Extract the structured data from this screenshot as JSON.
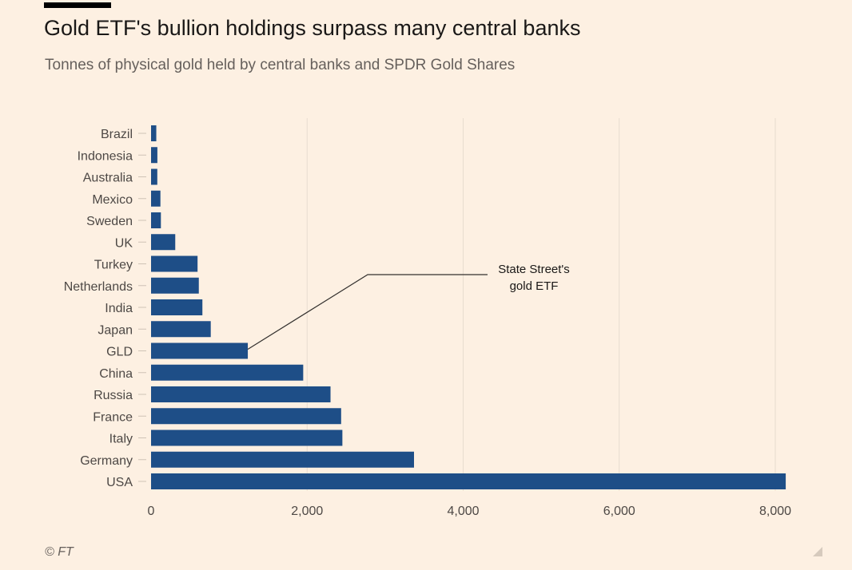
{
  "header": {
    "title": "Gold ETF's bullion holdings surpass many central banks",
    "subtitle": "Tonnes of physical gold held by central banks and SPDR Gold Shares"
  },
  "source": "© FT",
  "chart_data": {
    "type": "bar",
    "orientation": "horizontal",
    "title": "Gold ETF's bullion holdings surpass many central banks",
    "subtitle": "Tonnes of physical gold held by central banks and SPDR Gold Shares",
    "xlabel": "",
    "ylabel": "",
    "xlim": [
      0,
      8000
    ],
    "xticks": [
      0,
      2000,
      4000,
      6000,
      8000
    ],
    "xtick_labels": [
      "0",
      "2,000",
      "4,000",
      "6,000",
      "8,000"
    ],
    "grid": "vertical",
    "bar_color": "#1e4e87",
    "categories": [
      "Brazil",
      "Indonesia",
      "Australia",
      "Mexico",
      "Sweden",
      "UK",
      "Turkey",
      "Netherlands",
      "India",
      "Japan",
      "GLD",
      "China",
      "Russia",
      "France",
      "Italy",
      "Germany",
      "USA"
    ],
    "values": [
      67,
      81,
      80,
      120,
      126,
      310,
      596,
      612,
      658,
      765,
      1240,
      1950,
      2300,
      2436,
      2452,
      3370,
      8134
    ],
    "annotations": [
      {
        "target": "GLD",
        "text_lines": [
          "State Street's",
          "gold ETF"
        ]
      }
    ]
  }
}
